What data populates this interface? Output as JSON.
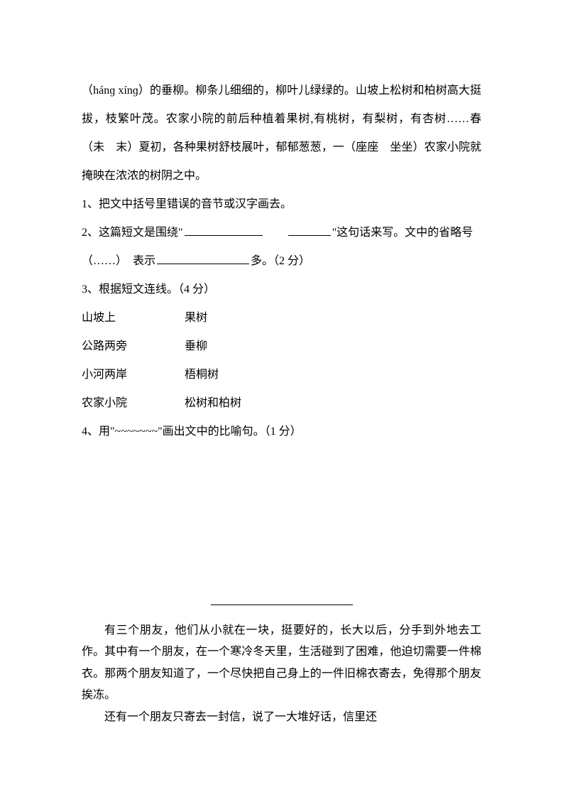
{
  "passage1": {
    "p1": "（hánɡ xínɡ）的垂柳。柳条儿细细的，柳叶儿绿绿的。山坡上松树和柏树高大挺拔，枝繁叶茂。农家小院的前后种植着果树,有桃树，有梨树，有杏树……春（未　末）夏初，各种果树舒枝展叶，郁郁葱葱，一（座座　坐坐）农家小院就掩映在浓浓的树阴之中。",
    "q1": "1、把文中括号里错误的音节或汉字画去。",
    "q2_prefix": "2、这篇短文是围绕\"",
    "q2_mid": "\"这句话来写。文中的省略号（……）　表示",
    "q2_suffix": "多。（2 分）",
    "q3": "3、根据短文连线。（4 分）",
    "match": [
      {
        "left": "山坡上",
        "right": "果树"
      },
      {
        "left": "公路两旁",
        "right": "垂柳"
      },
      {
        "left": "小河两岸",
        "right": "梧桐树"
      },
      {
        "left": "农家小院",
        "right": "松树和柏树"
      }
    ],
    "q4": "4、用\"~~~~~~~\"画出文中的比喻句。（1 分）"
  },
  "passage2": {
    "p1": "有三个朋友，他们从小就在一块，挺要好的，长大以后，分手到外地去工作。其中有一个朋友，在一个寒冷冬天里，生活碰到了困难，他迫切需要一件棉衣。那两个朋友知道了，一个尽快把自己身上的一件旧棉衣寄去，免得那个朋友挨冻。",
    "p2": "还有一个朋友只寄去一封信，说了一大堆好话，信里还"
  },
  "styles": {
    "blank1_width": 110,
    "blank2_width": 60,
    "blank3_width": 130
  }
}
